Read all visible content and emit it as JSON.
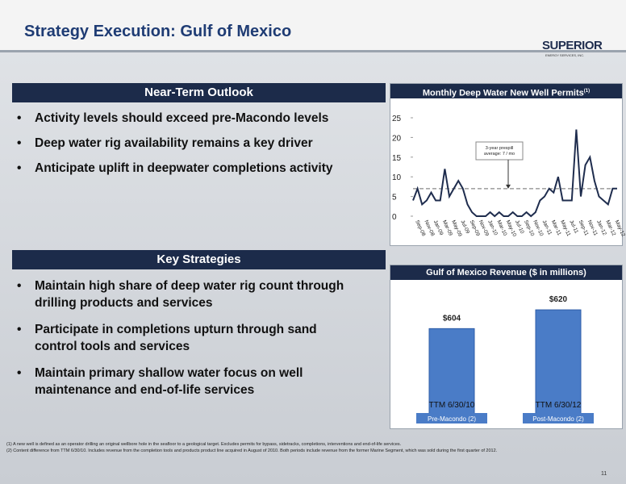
{
  "header": {
    "title": "Strategy Execution: Gulf of Mexico",
    "logo": "SUPERIOR",
    "logo_sub": "ENERGY SERVICES, INC."
  },
  "outlook": {
    "heading": "Near-Term Outlook",
    "bullets": [
      "Activity levels should exceed pre-Macondo levels",
      "Deep water rig availability remains a key driver",
      "Anticipate uplift in deepwater completions activity"
    ]
  },
  "strategies": {
    "heading": "Key Strategies",
    "bullets": [
      "Maintain high share of deep water rig count through drilling products and services",
      "Participate in completions upturn through sand control tools and services",
      "Maintain primary shallow water focus on well maintenance and end-of-life services"
    ]
  },
  "chart_data": [
    {
      "type": "line",
      "title": "Monthly Deep Water New Well Permits",
      "title_note": "(1)",
      "categories": [
        "Sep-08",
        null,
        "Nov-08",
        null,
        "Jan-09",
        null,
        "Mar-09",
        null,
        "May-09",
        null,
        "Jul-09",
        null,
        "Sep-09",
        null,
        "Nov-09",
        null,
        "Jan-10",
        null,
        "Mar-10",
        null,
        "May-10",
        null,
        "Jul-10",
        null,
        "Sep-10",
        null,
        "Nov-10",
        null,
        "Jan-11",
        null,
        "Mar-11",
        null,
        "May-11",
        null,
        "Jul-11",
        null,
        "Sep-11",
        null,
        "Nov-11",
        null,
        "Jan-12",
        null,
        "Mar-12",
        null,
        "May-12",
        null
      ],
      "values": [
        4,
        7,
        3,
        4,
        6,
        4,
        4,
        12,
        5,
        7,
        9,
        7,
        3,
        1,
        0,
        0,
        0,
        1,
        0,
        1,
        0,
        0,
        1,
        0,
        0,
        1,
        0,
        1,
        4,
        5,
        7,
        6,
        10,
        4,
        4,
        4,
        22,
        5,
        13,
        15,
        9,
        5,
        4,
        3,
        7,
        7
      ],
      "color": "#1f2d4e",
      "ylim": [
        0,
        25
      ],
      "yticks": [
        0,
        5,
        10,
        15,
        20,
        25
      ],
      "reference_line": 7,
      "annotation": "3-year prespill average: 7 / mo"
    },
    {
      "type": "bar",
      "title": "Gulf of Mexico Revenue ($ in millions)",
      "categories": [
        "TTM 6/30/10",
        "TTM 6/30/12"
      ],
      "sublabels": [
        "Pre-Macondo (2)",
        "Post-Macondo (2)"
      ],
      "values": [
        604,
        620
      ],
      "value_labels": [
        "$604",
        "$620"
      ],
      "color": "#4a7cc7",
      "ylim": [
        530,
        640
      ]
    }
  ],
  "footnotes": [
    {
      "mark": "(1)",
      "text": "A new well is defined as an operator drilling an original wellbore hole in the seafloor to a geological target. Excludes permits for bypass, sidetracks, completions, interventions and end-of-life services."
    },
    {
      "mark": "(2)",
      "text": "Content difference from TTM 6/30/10. Includes revenue from the completion tools and products product line acquired in August of 2010. Both periods include revenue from the former Marine Segment, which was sold during the first quarter of 2012."
    }
  ],
  "page_number": "11"
}
